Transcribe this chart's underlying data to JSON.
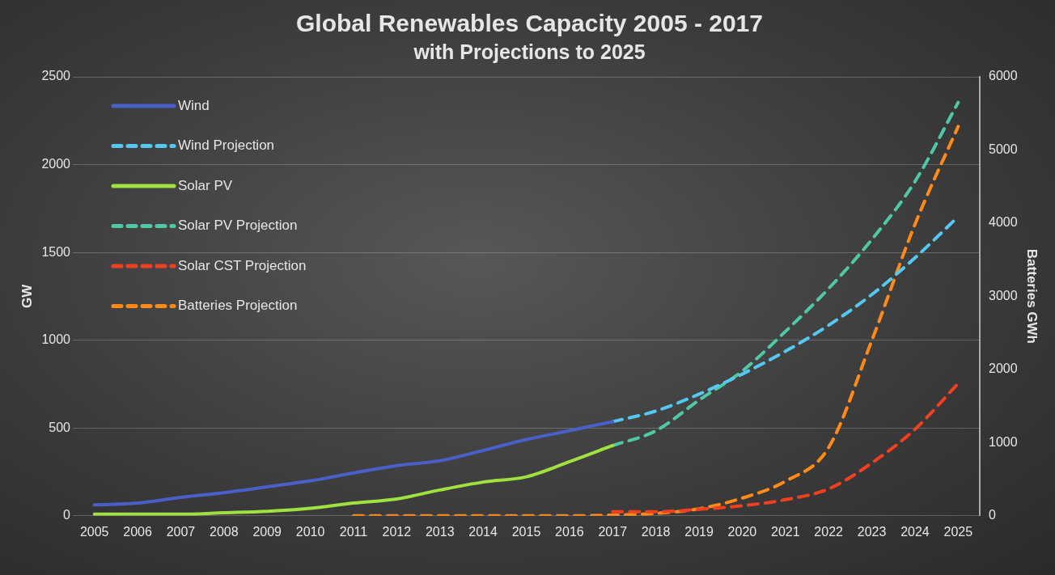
{
  "chart_data": {
    "type": "line",
    "title": "Global Renewables Capacity 2005 - 2017",
    "subtitle": "with Projections to 2025",
    "ylabel": "GW",
    "y2label": "Batteries GWh",
    "categories": [
      "2005",
      "2006",
      "2007",
      "2008",
      "2009",
      "2010",
      "2011",
      "2012",
      "2013",
      "2014",
      "2015",
      "2016",
      "2017",
      "2018",
      "2019",
      "2020",
      "2021",
      "2022",
      "2023",
      "2024",
      "2025"
    ],
    "series": [
      {
        "name": "Wind",
        "color": "#4a5fc8",
        "line_style": "solid",
        "values": [
          62,
          73,
          105,
          132,
          165,
          199,
          244,
          286,
          314,
          372,
          434,
          485,
          536,
          null,
          null,
          null,
          null,
          null,
          null,
          null,
          null
        ]
      },
      {
        "name": "Wind Projection",
        "color": "#55c8f0",
        "line_style": "dashed",
        "values": [
          null,
          null,
          null,
          null,
          null,
          null,
          null,
          null,
          null,
          null,
          null,
          null,
          536,
          597,
          693,
          807,
          937,
          1085,
          1260,
          1469,
          1704
        ]
      },
      {
        "name": "Solar PV",
        "color": "#a0e040",
        "line_style": "solid",
        "values": [
          9,
          9,
          9,
          17,
          26,
          43,
          73,
          96,
          147,
          192,
          222,
          308,
          400,
          null,
          null,
          null,
          null,
          null,
          null,
          null,
          null
        ]
      },
      {
        "name": "Solar PV Projection",
        "color": "#50c8a8",
        "line_style": "dashed",
        "values": [
          null,
          null,
          null,
          null,
          null,
          null,
          null,
          null,
          null,
          null,
          null,
          null,
          400,
          484,
          659,
          824,
          1050,
          1294,
          1573,
          1904,
          2354
        ]
      },
      {
        "name": "Solar CST Projection",
        "color": "#f04020",
        "line_style": "dashed",
        "values": [
          null,
          null,
          null,
          null,
          null,
          null,
          null,
          null,
          null,
          null,
          null,
          null,
          23,
          23,
          37,
          57,
          92,
          153,
          301,
          493,
          754
        ]
      },
      {
        "name": "Batteries Projection",
        "color": "#ff8a1a",
        "line_style": "dashed",
        "axis": "y2",
        "values": [
          null,
          null,
          null,
          null,
          null,
          null,
          0,
          0,
          0,
          0,
          0,
          0,
          10,
          33,
          96,
          242,
          472,
          932,
          2396,
          3984,
          5322
        ]
      }
    ],
    "ylim": [
      0,
      2500
    ],
    "yticks": [
      0,
      500,
      1000,
      1500,
      2000,
      2500
    ],
    "y2lim": [
      0,
      6000
    ],
    "y2ticks": [
      0,
      1000,
      2000,
      3000,
      4000,
      5000,
      6000
    ],
    "grid": "y",
    "legend": "top left",
    "marker": "none"
  }
}
